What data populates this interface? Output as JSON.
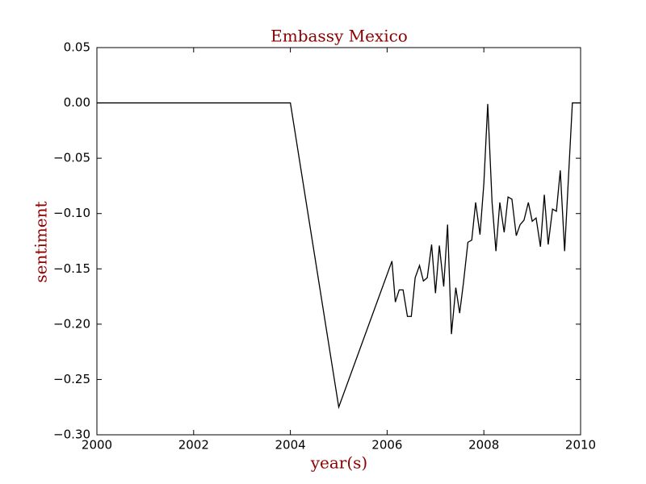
{
  "chart_data": {
    "type": "line",
    "title": "Embassy Mexico",
    "x_label": "year(s)",
    "y_label": "sentiment",
    "x": [
      2000,
      2004.0,
      2005.0,
      2006.1,
      2006.17,
      2006.25,
      2006.33,
      2006.42,
      2006.5,
      2006.58,
      2006.67,
      2006.75,
      2006.83,
      2006.92,
      2007.0,
      2007.08,
      2007.17,
      2007.25,
      2007.33,
      2007.42,
      2007.5,
      2007.58,
      2007.67,
      2007.75,
      2007.83,
      2007.92,
      2008.0,
      2008.08,
      2008.17,
      2008.25,
      2008.33,
      2008.42,
      2008.5,
      2008.58,
      2008.67,
      2008.75,
      2008.83,
      2008.92,
      2009.0,
      2009.08,
      2009.17,
      2009.25,
      2009.33,
      2009.42,
      2009.5,
      2009.58,
      2009.67,
      2009.83,
      2009.92,
      2010.0
    ],
    "series": [
      {
        "color": "#000000",
        "values": [
          0,
          0,
          -0.275,
          -0.143,
          -0.18,
          -0.169,
          -0.169,
          -0.193,
          -0.193,
          -0.158,
          -0.147,
          -0.161,
          -0.158,
          -0.128,
          -0.172,
          -0.129,
          -0.166,
          -0.11,
          -0.209,
          -0.167,
          -0.19,
          -0.162,
          -0.126,
          -0.124,
          -0.09,
          -0.119,
          -0.073,
          -0.001,
          -0.09,
          -0.134,
          -0.09,
          -0.117,
          -0.085,
          -0.087,
          -0.12,
          -0.11,
          -0.106,
          -0.09,
          -0.107,
          -0.104,
          -0.13,
          -0.083,
          -0.128,
          -0.096,
          -0.098,
          -0.061,
          -0.134,
          0,
          0,
          0
        ]
      }
    ],
    "xlim": [
      2000,
      2010
    ],
    "xticks": [
      2000,
      2002,
      2004,
      2006,
      2008,
      2010
    ],
    "ylim": [
      -0.3,
      0.05
    ],
    "yticks": [
      {
        "value": -0.3,
        "label": "−0.30"
      },
      {
        "value": -0.25,
        "label": "−0.25"
      },
      {
        "value": -0.2,
        "label": "−0.20"
      },
      {
        "value": -0.15,
        "label": "−0.15"
      },
      {
        "value": -0.1,
        "label": "−0.10"
      },
      {
        "value": -0.05,
        "label": "−0.05"
      },
      {
        "value": 0,
        "label": "0.00"
      },
      0.05
    ]
  }
}
